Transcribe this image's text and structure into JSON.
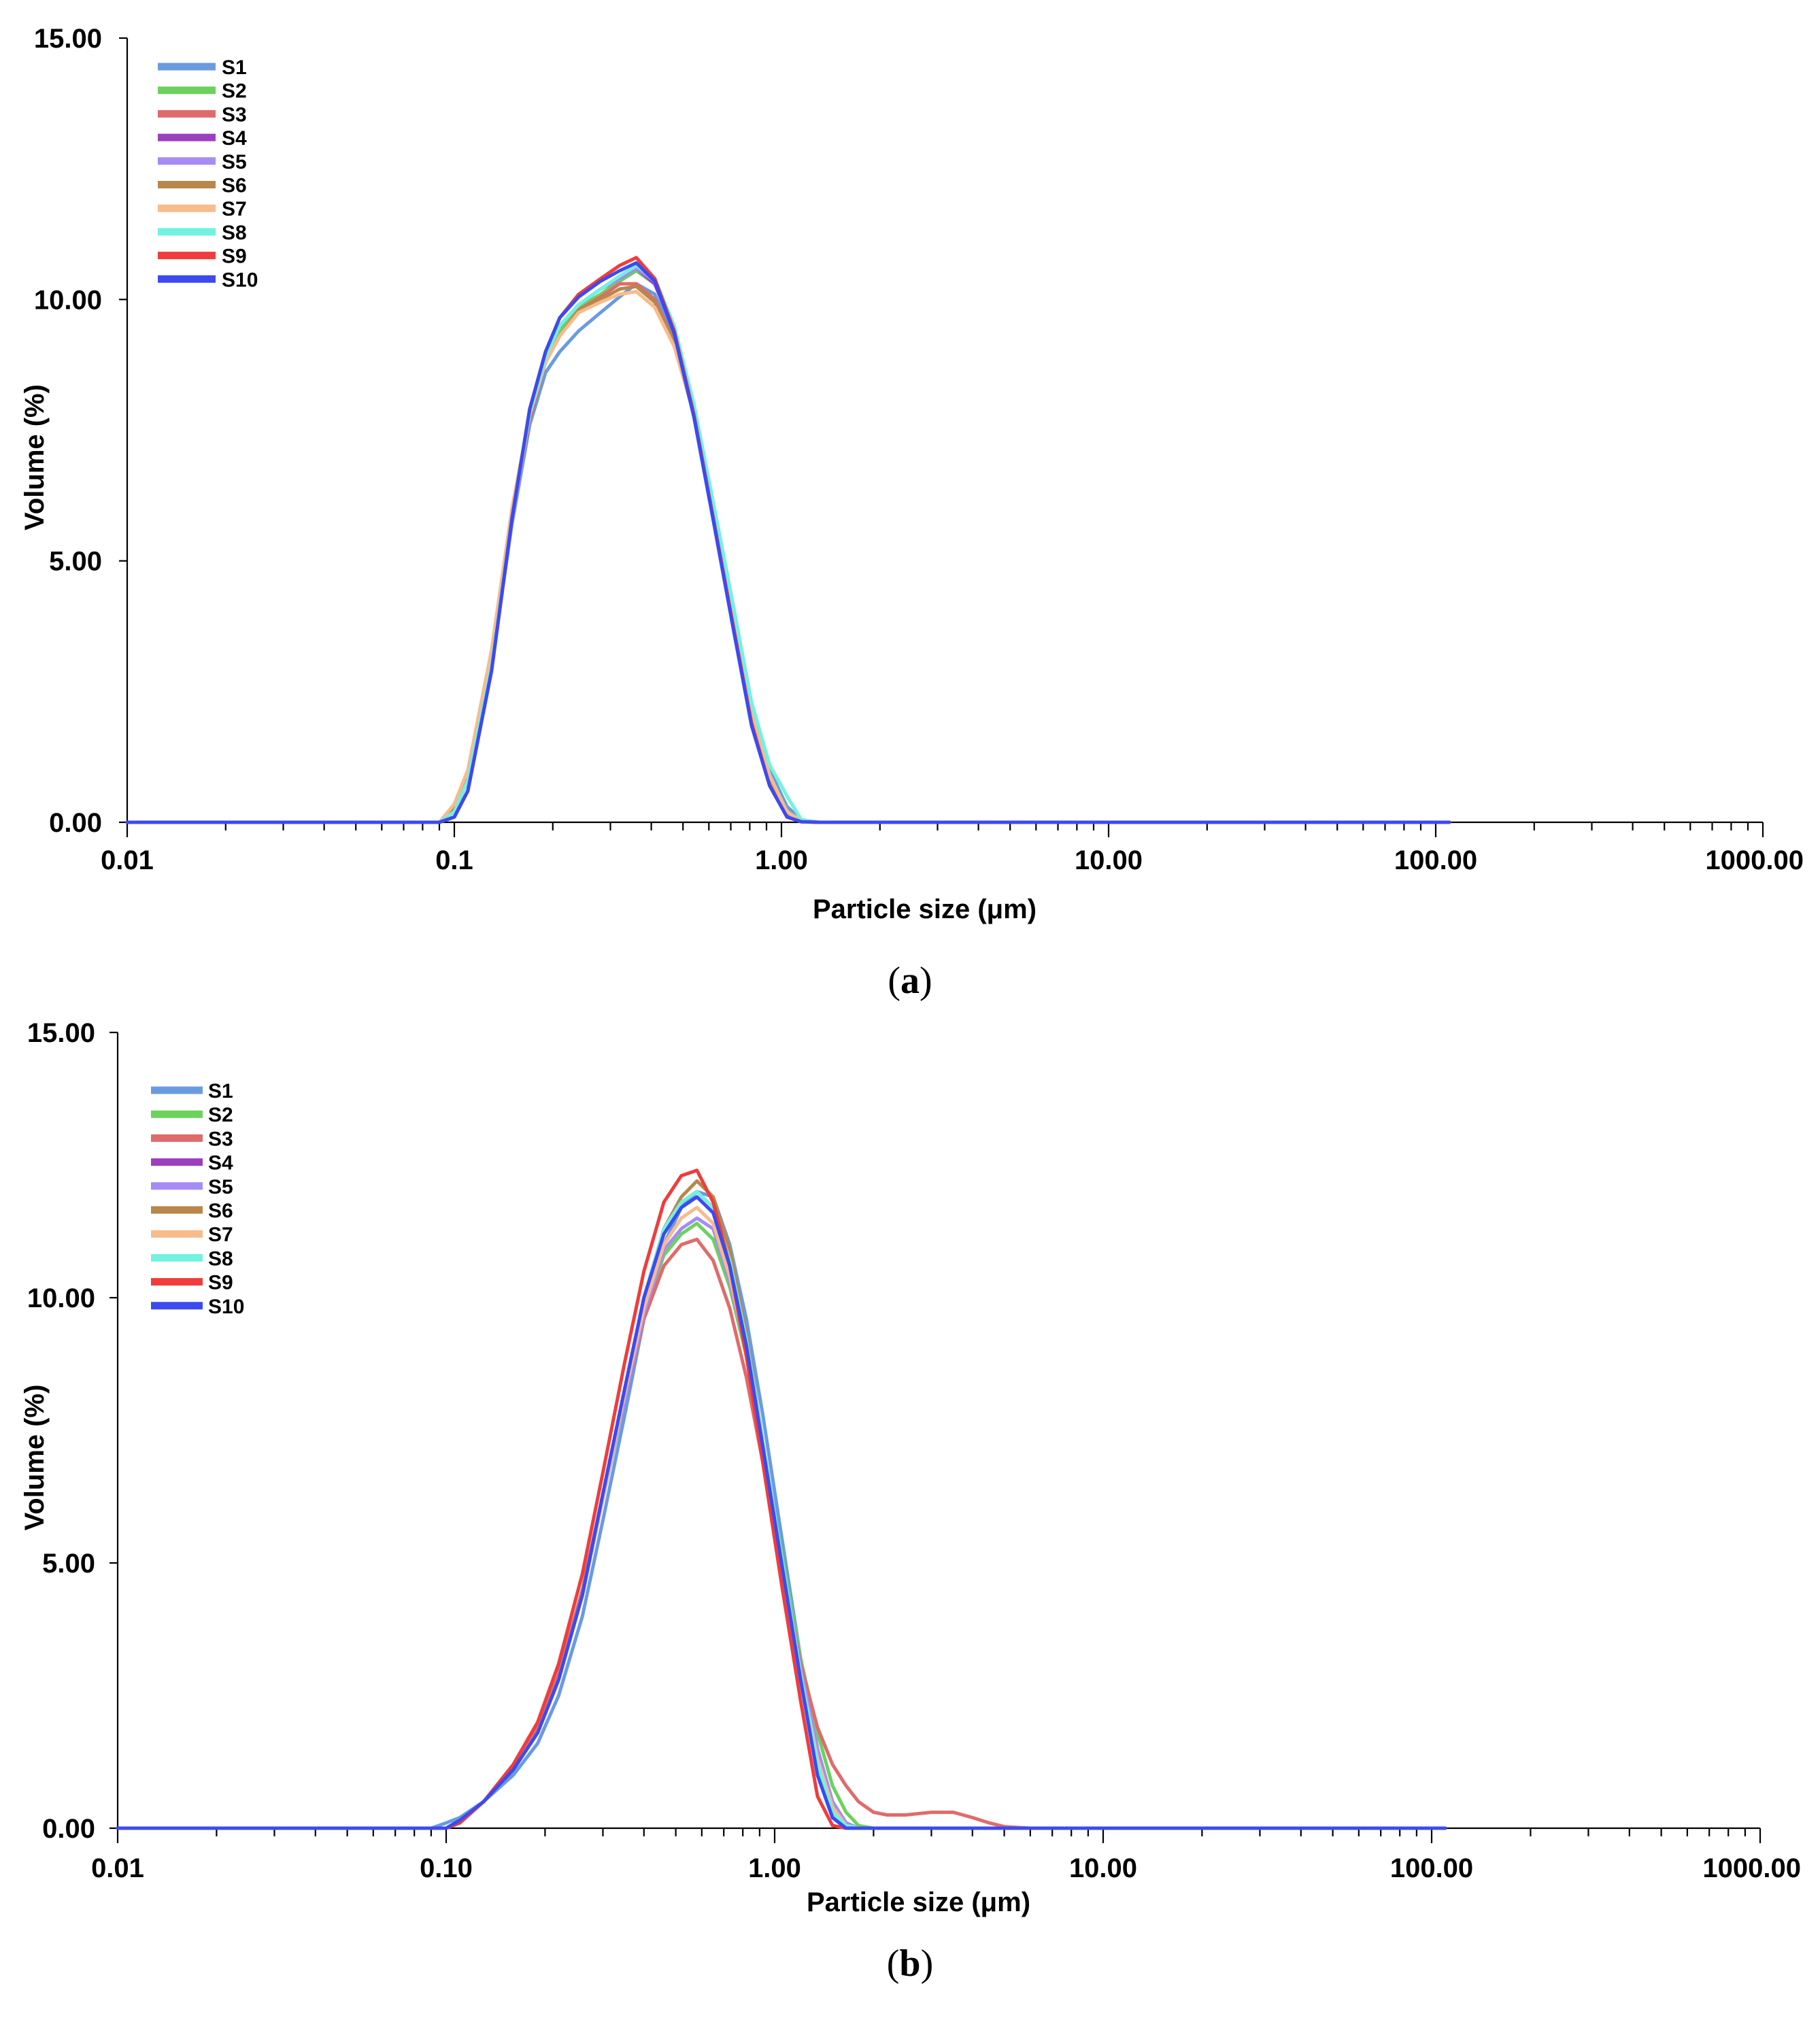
{
  "colors": {
    "S1": "#6a9be0",
    "S2": "#6bd25c",
    "S3": "#e06b6b",
    "S4": "#9b3fbf",
    "S5": "#a68cf5",
    "S6": "#b9874a",
    "S7": "#f7bb8c",
    "S8": "#72f2e0",
    "S9": "#f03c3c",
    "S10": "#3c4af0"
  },
  "chart_data": [
    {
      "type": "line",
      "panel_label": "a",
      "xscale": "log",
      "xlim": [
        0.01,
        1000
      ],
      "ylim": [
        0,
        15
      ],
      "xlabel": "Particle size (μm)",
      "ylabel": "Volume (%)",
      "xticks": [
        {
          "value": 0.01,
          "label": "0.01"
        },
        {
          "value": 0.1,
          "label": "0.1"
        },
        {
          "value": 1,
          "label": "1.00"
        },
        {
          "value": 10,
          "label": "10.00"
        },
        {
          "value": 100,
          "label": "100.00"
        },
        {
          "value": 1000,
          "label": "1000.00"
        }
      ],
      "yticks": [
        {
          "value": 0,
          "label": "0.00"
        },
        {
          "value": 5,
          "label": "5.00"
        },
        {
          "value": 10,
          "label": "10.00"
        },
        {
          "value": 15,
          "label": "15.00"
        }
      ],
      "legend": [
        "S1",
        "S2",
        "S3",
        "S4",
        "S5",
        "S6",
        "S7",
        "S8",
        "S9",
        "S10"
      ],
      "x": [
        0.01,
        0.05,
        0.09,
        0.1,
        0.11,
        0.13,
        0.15,
        0.17,
        0.19,
        0.21,
        0.24,
        0.28,
        0.32,
        0.36,
        0.41,
        0.47,
        0.54,
        0.62,
        0.71,
        0.81,
        0.92,
        1.04,
        1.15,
        1.3,
        2,
        10,
        110
      ],
      "series": [
        {
          "name": "S1",
          "values": [
            0,
            0,
            0,
            0.2,
            0.8,
            3.0,
            5.7,
            7.6,
            8.6,
            9.0,
            9.4,
            9.75,
            10.05,
            10.3,
            10.1,
            9.3,
            7.9,
            6.0,
            4.1,
            2.2,
            1.0,
            0.3,
            0.05,
            0,
            0,
            0,
            0
          ]
        },
        {
          "name": "S2",
          "values": [
            0,
            0,
            0,
            0.2,
            0.8,
            3.0,
            5.8,
            7.8,
            8.9,
            9.4,
            9.85,
            10.1,
            10.35,
            10.55,
            10.3,
            9.4,
            7.9,
            6.0,
            4.0,
            2.1,
            0.9,
            0.2,
            0.03,
            0,
            0,
            0,
            0
          ]
        },
        {
          "name": "S3",
          "values": [
            0,
            0,
            0,
            0.3,
            0.9,
            3.1,
            5.8,
            7.7,
            8.8,
            9.3,
            9.8,
            10.05,
            10.3,
            10.3,
            10.0,
            9.2,
            7.8,
            5.9,
            3.9,
            2.0,
            0.8,
            0.15,
            0.02,
            0,
            0,
            0,
            0
          ]
        },
        {
          "name": "S4",
          "values": [
            0,
            0,
            0,
            0.2,
            0.8,
            3.0,
            5.8,
            7.8,
            8.9,
            9.5,
            9.9,
            10.2,
            10.4,
            10.6,
            10.3,
            9.4,
            7.8,
            5.9,
            3.9,
            2.0,
            0.8,
            0.15,
            0.02,
            0,
            0,
            0,
            0
          ]
        },
        {
          "name": "S5",
          "values": [
            0,
            0,
            0,
            0.2,
            0.8,
            3.0,
            5.8,
            7.8,
            8.9,
            9.5,
            9.9,
            10.2,
            10.4,
            10.6,
            10.35,
            9.45,
            7.9,
            6.0,
            4.0,
            2.1,
            0.9,
            0.2,
            0.03,
            0,
            0,
            0,
            0
          ]
        },
        {
          "name": "S6",
          "values": [
            0,
            0,
            0,
            0.3,
            0.9,
            3.2,
            5.9,
            7.8,
            8.8,
            9.3,
            9.8,
            10.0,
            10.2,
            10.25,
            9.95,
            9.2,
            7.8,
            5.9,
            3.9,
            2.0,
            0.8,
            0.15,
            0.02,
            0,
            0,
            0,
            0
          ]
        },
        {
          "name": "S7",
          "values": [
            0,
            0,
            0,
            0.35,
            1.0,
            3.3,
            6.0,
            7.8,
            8.8,
            9.3,
            9.75,
            9.95,
            10.1,
            10.15,
            9.85,
            9.1,
            7.8,
            6.0,
            4.0,
            2.1,
            0.9,
            0.2,
            0.03,
            0,
            0,
            0,
            0
          ]
        },
        {
          "name": "S8",
          "values": [
            0,
            0,
            0,
            0.2,
            0.8,
            3.0,
            5.8,
            7.8,
            8.9,
            9.5,
            9.9,
            10.2,
            10.45,
            10.65,
            10.4,
            9.5,
            8.0,
            6.1,
            4.2,
            2.3,
            1.1,
            0.5,
            0.05,
            0,
            0,
            0,
            0
          ]
        },
        {
          "name": "S9",
          "values": [
            0,
            0,
            0,
            0.1,
            0.6,
            2.9,
            5.8,
            7.9,
            9.0,
            9.65,
            10.1,
            10.4,
            10.65,
            10.8,
            10.4,
            9.4,
            7.8,
            5.8,
            3.8,
            1.9,
            0.7,
            0.1,
            0.01,
            0,
            0,
            0,
            0
          ]
        },
        {
          "name": "S10",
          "values": [
            0,
            0,
            0,
            0.1,
            0.6,
            2.9,
            5.8,
            7.9,
            9.0,
            9.65,
            10.05,
            10.35,
            10.55,
            10.7,
            10.35,
            9.35,
            7.75,
            5.75,
            3.75,
            1.85,
            0.7,
            0.1,
            0.01,
            0,
            0,
            0,
            0
          ]
        }
      ]
    },
    {
      "type": "line",
      "panel_label": "b",
      "xscale": "log",
      "xlim": [
        0.01,
        1000
      ],
      "ylim": [
        0,
        15
      ],
      "xlabel": "Particle size (μm)",
      "ylabel": "Volume (%)",
      "xticks": [
        {
          "value": 0.01,
          "label": "0.01"
        },
        {
          "value": 0.1,
          "label": "0.10"
        },
        {
          "value": 1,
          "label": "1.00"
        },
        {
          "value": 10,
          "label": "10.00"
        },
        {
          "value": 100,
          "label": "100.00"
        },
        {
          "value": 1000,
          "label": "1000.00"
        }
      ],
      "yticks": [
        {
          "value": 0,
          "label": "0.00"
        },
        {
          "value": 5,
          "label": "5.00"
        },
        {
          "value": 10,
          "label": "10.00"
        },
        {
          "value": 15,
          "label": "15.00"
        }
      ],
      "legend": [
        "S1",
        "S2",
        "S3",
        "S4",
        "S5",
        "S6",
        "S7",
        "S8",
        "S9",
        "S10"
      ],
      "x": [
        0.01,
        0.05,
        0.09,
        0.1,
        0.11,
        0.13,
        0.16,
        0.19,
        0.22,
        0.26,
        0.3,
        0.35,
        0.4,
        0.46,
        0.52,
        0.58,
        0.65,
        0.73,
        0.82,
        0.92,
        1.05,
        1.2,
        1.35,
        1.5,
        1.65,
        1.8,
        2.0,
        2.2,
        2.5,
        3.0,
        3.5,
        4.0,
        4.5,
        5.0,
        6.0,
        10,
        110
      ],
      "series": [
        {
          "name": "S1",
          "values": [
            0,
            0,
            0,
            0.1,
            0.2,
            0.5,
            1.0,
            1.6,
            2.5,
            4.0,
            5.8,
            7.8,
            9.6,
            11.0,
            11.7,
            12.0,
            11.9,
            11.0,
            9.6,
            7.8,
            5.5,
            3.2,
            1.5,
            0.5,
            0.1,
            0,
            0,
            0,
            0,
            0,
            0,
            0,
            0,
            0,
            0,
            0,
            0
          ]
        },
        {
          "name": "S2",
          "values": [
            0,
            0,
            0,
            0,
            0.15,
            0.5,
            1.1,
            1.8,
            2.8,
            4.4,
            6.2,
            8.1,
            9.7,
            10.8,
            11.2,
            11.4,
            11.1,
            10.2,
            8.9,
            7.2,
            5.2,
            3.2,
            1.8,
            0.8,
            0.3,
            0.05,
            0,
            0,
            0,
            0,
            0,
            0,
            0,
            0,
            0,
            0,
            0
          ]
        },
        {
          "name": "S3",
          "values": [
            0,
            0,
            0,
            0,
            0.1,
            0.5,
            1.1,
            1.9,
            2.9,
            4.5,
            6.3,
            8.1,
            9.6,
            10.6,
            11.0,
            11.1,
            10.7,
            9.8,
            8.5,
            6.9,
            5.0,
            3.1,
            1.9,
            1.2,
            0.8,
            0.5,
            0.3,
            0.25,
            0.25,
            0.3,
            0.3,
            0.2,
            0.1,
            0.03,
            0,
            0,
            0
          ]
        },
        {
          "name": "S4",
          "values": [
            0,
            0,
            0,
            0,
            0.15,
            0.5,
            1.1,
            1.8,
            2.8,
            4.4,
            6.3,
            8.3,
            10.0,
            11.3,
            11.8,
            12.0,
            11.7,
            10.7,
            9.2,
            7.3,
            5.1,
            2.9,
            1.2,
            0.3,
            0.05,
            0,
            0,
            0,
            0,
            0,
            0,
            0,
            0,
            0,
            0,
            0,
            0
          ]
        },
        {
          "name": "S5",
          "values": [
            0,
            0,
            0,
            0,
            0.15,
            0.5,
            1.1,
            1.8,
            2.8,
            4.4,
            6.2,
            8.1,
            9.7,
            10.9,
            11.3,
            11.5,
            11.3,
            10.3,
            9.0,
            7.2,
            5.1,
            3.0,
            1.5,
            0.5,
            0.1,
            0,
            0,
            0,
            0,
            0,
            0,
            0,
            0,
            0,
            0,
            0,
            0
          ]
        },
        {
          "name": "S6",
          "values": [
            0,
            0,
            0,
            0,
            0.15,
            0.5,
            1.1,
            1.8,
            2.8,
            4.4,
            6.3,
            8.3,
            10.0,
            11.3,
            11.9,
            12.2,
            11.9,
            10.9,
            9.3,
            7.3,
            5.0,
            2.8,
            1.0,
            0.2,
            0,
            0,
            0,
            0,
            0,
            0,
            0,
            0,
            0,
            0,
            0,
            0,
            0
          ]
        },
        {
          "name": "S7",
          "values": [
            0,
            0,
            0,
            0,
            0.15,
            0.5,
            1.1,
            1.8,
            2.8,
            4.4,
            6.2,
            8.2,
            9.8,
            11.0,
            11.5,
            11.7,
            11.4,
            10.4,
            9.0,
            7.2,
            5.0,
            2.9,
            1.3,
            0.4,
            0.05,
            0,
            0,
            0,
            0,
            0,
            0,
            0,
            0,
            0,
            0,
            0,
            0
          ]
        },
        {
          "name": "S8",
          "values": [
            0,
            0,
            0,
            0,
            0.15,
            0.5,
            1.1,
            1.8,
            2.8,
            4.4,
            6.3,
            8.3,
            10.0,
            11.3,
            11.8,
            12.0,
            11.7,
            10.7,
            9.2,
            7.3,
            5.1,
            2.9,
            1.2,
            0.3,
            0.05,
            0,
            0,
            0,
            0,
            0,
            0,
            0,
            0,
            0,
            0,
            0,
            0
          ]
        },
        {
          "name": "S9",
          "values": [
            0,
            0,
            0,
            0,
            0.1,
            0.5,
            1.2,
            2.0,
            3.1,
            4.8,
            6.7,
            8.8,
            10.5,
            11.8,
            12.3,
            12.4,
            11.8,
            10.6,
            8.9,
            6.9,
            4.6,
            2.4,
            0.6,
            0.05,
            0,
            0,
            0,
            0,
            0,
            0,
            0,
            0,
            0,
            0,
            0,
            0,
            0
          ]
        },
        {
          "name": "S10",
          "values": [
            0,
            0,
            0,
            0,
            0.15,
            0.5,
            1.1,
            1.8,
            2.8,
            4.4,
            6.3,
            8.3,
            10.0,
            11.2,
            11.7,
            11.9,
            11.6,
            10.6,
            9.1,
            7.2,
            5.0,
            2.8,
            1.0,
            0.2,
            0,
            0,
            0,
            0,
            0,
            0,
            0,
            0,
            0,
            0,
            0,
            0,
            0
          ]
        }
      ]
    }
  ]
}
